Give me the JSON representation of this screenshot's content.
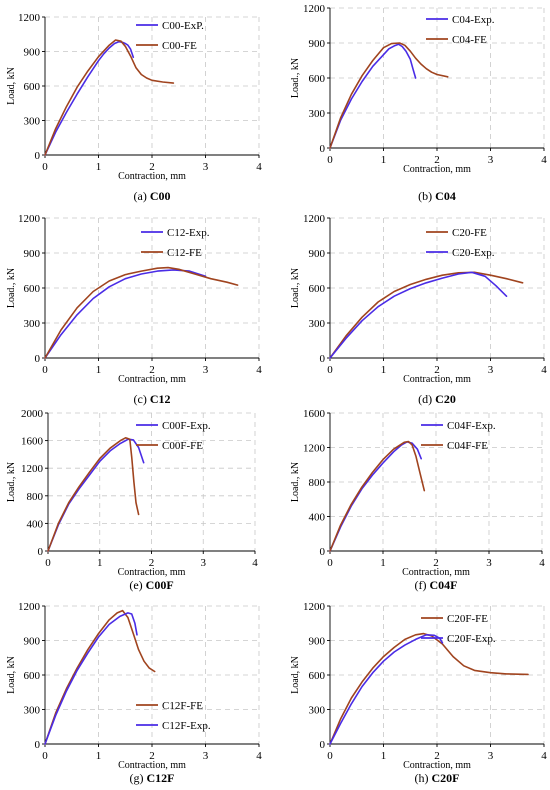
{
  "colors": {
    "exp": "#4a2ce6",
    "fe": "#a0441f",
    "grid": "#c8c8c8",
    "axis": "#000000"
  },
  "chart_data": [
    {
      "type": "line",
      "caption_tag": "(a)",
      "caption_name": "C00",
      "xlabel": "Contraction, mm",
      "ylabel": "Load, kN",
      "xlim": [
        0,
        4
      ],
      "ylim": [
        0,
        1200
      ],
      "xticks": [
        0,
        1,
        2,
        3,
        4
      ],
      "yticks": [
        0,
        300,
        600,
        900,
        1200
      ],
      "grid": true,
      "legend_position": "top-right",
      "series": [
        {
          "name": "C00-ExP.",
          "color": "exp",
          "x": [
            0,
            0.2,
            0.4,
            0.6,
            0.8,
            1.0,
            1.1,
            1.2,
            1.3,
            1.38,
            1.45,
            1.5,
            1.55,
            1.6,
            1.65
          ],
          "y": [
            0,
            200,
            370,
            530,
            680,
            820,
            880,
            930,
            970,
            985,
            980,
            970,
            955,
            920,
            850
          ]
        },
        {
          "name": "C00-FE",
          "color": "fe",
          "x": [
            0,
            0.2,
            0.4,
            0.6,
            0.8,
            1.0,
            1.2,
            1.32,
            1.42,
            1.5,
            1.6,
            1.7,
            1.8,
            1.9,
            2.0,
            2.2,
            2.4
          ],
          "y": [
            0,
            230,
            420,
            590,
            730,
            855,
            955,
            1000,
            990,
            945,
            860,
            760,
            700,
            670,
            650,
            635,
            625
          ]
        }
      ]
    },
    {
      "type": "line",
      "caption_tag": "(b)",
      "caption_name": "C04",
      "xlabel": "Contraction, mm",
      "ylabel": "Load., kN",
      "xlim": [
        0,
        4
      ],
      "ylim": [
        0,
        1200
      ],
      "xticks": [
        0,
        1,
        2,
        3,
        4
      ],
      "yticks": [
        0,
        300,
        600,
        900,
        1200
      ],
      "grid": true,
      "legend_position": "top-right",
      "series": [
        {
          "name": "C04-Exp.",
          "color": "exp",
          "x": [
            0,
            0.2,
            0.4,
            0.6,
            0.8,
            1.0,
            1.1,
            1.2,
            1.28,
            1.35,
            1.42,
            1.5,
            1.55,
            1.6
          ],
          "y": [
            0,
            240,
            420,
            570,
            700,
            800,
            850,
            875,
            890,
            870,
            830,
            760,
            680,
            600
          ]
        },
        {
          "name": "C04-FE",
          "color": "fe",
          "x": [
            0,
            0.2,
            0.4,
            0.6,
            0.8,
            1.0,
            1.15,
            1.3,
            1.4,
            1.5,
            1.6,
            1.7,
            1.8,
            1.9,
            2.0,
            2.2
          ],
          "y": [
            0,
            260,
            460,
            620,
            750,
            860,
            895,
            900,
            880,
            830,
            770,
            720,
            680,
            650,
            630,
            610
          ]
        }
      ]
    },
    {
      "type": "line",
      "caption_tag": "(c)",
      "caption_name": "C12",
      "xlabel": "Contraction, mm",
      "ylabel": "Load., kN",
      "xlim": [
        0,
        4
      ],
      "ylim": [
        0,
        1200
      ],
      "xticks": [
        0,
        1,
        2,
        3,
        4
      ],
      "yticks": [
        0,
        300,
        600,
        900,
        1200
      ],
      "grid": true,
      "legend_position": "top-right",
      "series": [
        {
          "name": "C12-Exp.",
          "color": "exp",
          "x": [
            0,
            0.3,
            0.6,
            0.9,
            1.2,
            1.5,
            1.8,
            2.1,
            2.4,
            2.7,
            3.0
          ],
          "y": [
            0,
            200,
            370,
            510,
            610,
            680,
            720,
            745,
            755,
            745,
            700
          ]
        },
        {
          "name": "C12-FE",
          "color": "fe",
          "x": [
            0,
            0.3,
            0.6,
            0.9,
            1.2,
            1.5,
            1.8,
            2.1,
            2.3,
            2.5,
            2.8,
            3.1,
            3.4,
            3.6
          ],
          "y": [
            0,
            240,
            430,
            570,
            660,
            715,
            745,
            770,
            775,
            760,
            720,
            680,
            650,
            625
          ]
        }
      ]
    },
    {
      "type": "line",
      "caption_tag": "(d)",
      "caption_name": "C20",
      "xlabel": "Contraction, mm",
      "ylabel": "Load., kN",
      "xlim": [
        0,
        4
      ],
      "ylim": [
        0,
        1200
      ],
      "xticks": [
        0,
        1,
        2,
        3,
        4
      ],
      "yticks": [
        0,
        300,
        600,
        900,
        1200
      ],
      "grid": true,
      "legend_position": "top-right",
      "series": [
        {
          "name": "C20-FE",
          "color": "fe",
          "x": [
            0,
            0.3,
            0.6,
            0.9,
            1.2,
            1.5,
            1.8,
            2.1,
            2.4,
            2.7,
            3.0,
            3.3,
            3.6
          ],
          "y": [
            0,
            190,
            350,
            480,
            570,
            630,
            675,
            710,
            730,
            735,
            710,
            680,
            645
          ]
        },
        {
          "name": "C20-Exp.",
          "color": "exp",
          "x": [
            0,
            0.3,
            0.6,
            0.9,
            1.2,
            1.5,
            1.8,
            2.1,
            2.4,
            2.65,
            2.9,
            3.1,
            3.3
          ],
          "y": [
            0,
            170,
            320,
            440,
            530,
            595,
            645,
            685,
            720,
            735,
            700,
            620,
            530
          ]
        }
      ]
    },
    {
      "type": "line",
      "caption_tag": "(e)",
      "caption_name": "C00F",
      "xlabel": "Contraction, mm",
      "ylabel": "Load., kN",
      "xlim": [
        0,
        4
      ],
      "ylim": [
        0,
        2000
      ],
      "xticks": [
        0,
        1,
        2,
        3,
        4
      ],
      "yticks": [
        0,
        400,
        800,
        1200,
        1600,
        2000
      ],
      "grid": true,
      "legend_position": "top-right",
      "series": [
        {
          "name": "C00F-Exp.",
          "color": "exp",
          "x": [
            0,
            0.2,
            0.4,
            0.6,
            0.8,
            1.0,
            1.2,
            1.4,
            1.55,
            1.65,
            1.75,
            1.85
          ],
          "y": [
            0,
            380,
            680,
            900,
            1100,
            1300,
            1450,
            1560,
            1620,
            1610,
            1500,
            1280
          ]
        },
        {
          "name": "C00F-FE",
          "color": "fe",
          "x": [
            0,
            0.2,
            0.4,
            0.6,
            0.8,
            1.0,
            1.2,
            1.4,
            1.5,
            1.58,
            1.62,
            1.66,
            1.7,
            1.75
          ],
          "y": [
            0,
            400,
            700,
            930,
            1140,
            1340,
            1490,
            1600,
            1640,
            1620,
            1350,
            1000,
            700,
            530
          ]
        }
      ]
    },
    {
      "type": "line",
      "caption_tag": "(f)",
      "caption_name": "C04F",
      "xlabel": "Contraction, mm",
      "ylabel": "Load., kN",
      "xlim": [
        0,
        4
      ],
      "ylim": [
        0,
        1600
      ],
      "xticks": [
        0,
        1,
        2,
        3,
        4
      ],
      "yticks": [
        0,
        400,
        800,
        1200,
        1600
      ],
      "grid": true,
      "legend_position": "top-right",
      "series": [
        {
          "name": "C04F-Exp.",
          "color": "exp",
          "x": [
            0,
            0.2,
            0.4,
            0.6,
            0.8,
            1.0,
            1.2,
            1.35,
            1.45,
            1.55,
            1.65,
            1.72
          ],
          "y": [
            0,
            280,
            520,
            720,
            880,
            1020,
            1150,
            1230,
            1265,
            1250,
            1180,
            1070
          ]
        },
        {
          "name": "C04F-FE",
          "color": "fe",
          "x": [
            0,
            0.2,
            0.4,
            0.6,
            0.8,
            1.0,
            1.2,
            1.4,
            1.48,
            1.55,
            1.62,
            1.7,
            1.78
          ],
          "y": [
            0,
            300,
            540,
            740,
            910,
            1060,
            1180,
            1260,
            1270,
            1230,
            1100,
            900,
            700
          ]
        }
      ]
    },
    {
      "type": "line",
      "caption_tag": "(g)",
      "caption_name": "C12F",
      "xlabel": "Contraction, mm",
      "ylabel": "Load, kN",
      "xlim": [
        0,
        4
      ],
      "ylim": [
        0,
        1200
      ],
      "xticks": [
        0,
        1,
        2,
        3,
        4
      ],
      "yticks": [
        0,
        300,
        600,
        900,
        1200
      ],
      "grid": true,
      "legend_position": "bottom-right",
      "series": [
        {
          "name": "C12F-FE",
          "color": "fe",
          "x": [
            0,
            0.2,
            0.4,
            0.6,
            0.8,
            1.0,
            1.2,
            1.35,
            1.45,
            1.55,
            1.65,
            1.75,
            1.85,
            1.95,
            2.05
          ],
          "y": [
            0,
            270,
            480,
            660,
            820,
            960,
            1080,
            1140,
            1160,
            1100,
            960,
            820,
            720,
            660,
            630
          ]
        },
        {
          "name": "C12F-Exp.",
          "color": "exp",
          "x": [
            0,
            0.2,
            0.4,
            0.6,
            0.8,
            1.0,
            1.2,
            1.4,
            1.55,
            1.62,
            1.68,
            1.72
          ],
          "y": [
            0,
            250,
            460,
            640,
            790,
            930,
            1040,
            1110,
            1140,
            1130,
            1050,
            950
          ]
        }
      ]
    },
    {
      "type": "line",
      "caption_tag": "(h)",
      "caption_name": "C20F",
      "xlabel": "Contraction, mm",
      "ylabel": "Load, kN",
      "xlim": [
        0,
        4
      ],
      "ylim": [
        0,
        1200
      ],
      "xticks": [
        0,
        1,
        2,
        3,
        4
      ],
      "yticks": [
        0,
        300,
        600,
        900,
        1200
      ],
      "grid": true,
      "legend_position": "top-right",
      "series": [
        {
          "name": "C20F-FE",
          "color": "fe",
          "x": [
            0,
            0.2,
            0.4,
            0.6,
            0.8,
            1.0,
            1.2,
            1.4,
            1.6,
            1.75,
            1.9,
            2.1,
            2.3,
            2.5,
            2.7,
            3.0,
            3.3,
            3.7
          ],
          "y": [
            0,
            220,
            400,
            540,
            660,
            760,
            840,
            910,
            950,
            960,
            940,
            870,
            760,
            680,
            640,
            620,
            610,
            605
          ]
        },
        {
          "name": "C20F-Exp.",
          "color": "exp",
          "x": [
            0,
            0.2,
            0.4,
            0.6,
            0.8,
            1.0,
            1.2,
            1.4,
            1.6,
            1.8,
            1.95,
            2.05,
            2.1
          ],
          "y": [
            0,
            180,
            350,
            500,
            620,
            720,
            800,
            860,
            910,
            950,
            945,
            920,
            880
          ]
        }
      ]
    }
  ]
}
